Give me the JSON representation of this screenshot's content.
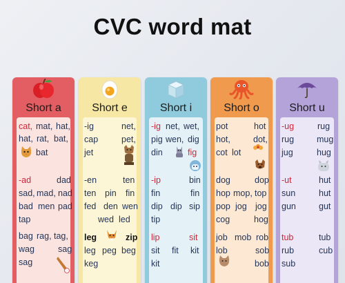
{
  "title": "CVC word mat",
  "columns": [
    {
      "label": "Short a",
      "icon": "apple-icon",
      "rows": [
        [
          "cat,",
          "mat,",
          "hat,"
        ],
        [
          "hat,",
          "rat,",
          "bat,"
        ],
        [
          "bat"
        ],
        [
          "-ad",
          "dad"
        ],
        [
          "sad,",
          "mad,",
          "nad"
        ],
        [
          "bad",
          "men",
          "pad"
        ],
        [
          "tap"
        ],
        [
          "bag",
          "rag,",
          "tag,"
        ],
        [
          "wag",
          "sag"
        ],
        [
          "sag"
        ]
      ]
    },
    {
      "label": "Short e",
      "icon": "egg-icon",
      "rows": [
        [
          "-ig",
          "net,"
        ],
        [
          "cap",
          "pet,"
        ],
        [
          "jet"
        ],
        [
          "-en",
          "ten"
        ],
        [
          "ten",
          "pin",
          "fin"
        ],
        [
          "fed",
          "den",
          "wen"
        ],
        [
          "wed",
          "led"
        ],
        [
          "leg",
          "zip"
        ],
        [
          "leg",
          "peg",
          "beg"
        ],
        [
          "keg"
        ]
      ]
    },
    {
      "label": "Short i",
      "icon": "ice-cube-icon",
      "rows": [
        [
          "-ig",
          "net,",
          "wet,"
        ],
        [
          "pig",
          "wen,",
          "dig"
        ],
        [
          "din",
          "fig"
        ],
        [
          "-ip",
          "bin"
        ],
        [
          "fin",
          "fin"
        ],
        [
          "dip",
          "dip",
          "sip"
        ],
        [
          "tip"
        ],
        [
          "lip",
          "sit"
        ],
        [
          "sit",
          "fit",
          "kit"
        ],
        [
          "kit"
        ]
      ]
    },
    {
      "label": "Short o",
      "icon": "octopus-icon",
      "rows": [
        [
          "pot",
          "hot"
        ],
        [
          "hot,",
          "dot,"
        ],
        [
          "cot",
          "lot"
        ],
        [
          "dog",
          "dop"
        ],
        [
          "hop",
          "mop,",
          "top"
        ],
        [
          "pop",
          "jog",
          "jog"
        ],
        [
          "cog",
          "hog"
        ],
        [
          "job",
          "mob",
          "rob"
        ],
        [
          "lob",
          "sob"
        ],
        [
          "bob"
        ]
      ]
    },
    {
      "label": "Short u",
      "icon": "umbrella-icon",
      "rows": [
        [
          "-ug",
          "rug"
        ],
        [
          "rug",
          "mug"
        ],
        [
          "jug",
          "hug"
        ],
        [
          "-ut",
          "hut"
        ],
        [
          "sun",
          "hut"
        ],
        [
          "gun",
          "gut"
        ],
        [
          "tub",
          "tub"
        ],
        [
          "rub",
          "cub"
        ],
        [
          "sub"
        ]
      ]
    }
  ],
  "colors": {
    "short_a": "#e25e62",
    "short_e": "#f6e7a4",
    "short_i": "#8fcbdd",
    "short_o": "#ef9a4d",
    "short_u": "#b4a3d9",
    "highlight": "#d0263a",
    "word": "#233457"
  }
}
